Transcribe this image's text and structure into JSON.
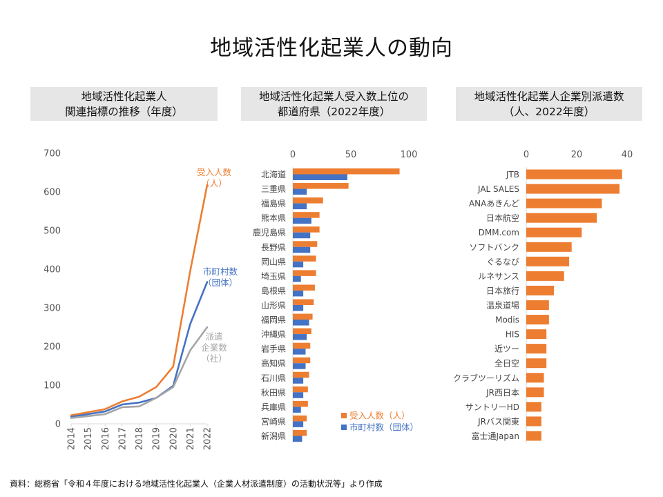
{
  "page_title": "地域活性化起業人の動向",
  "source_note": "資料：総務省「令和４年度における地域活性化起業人（企業人材派遣制度）の活動状況等」より作成",
  "colors": {
    "orange": "#ED7D31",
    "blue": "#4472C4",
    "gray": "#A5A5A5",
    "axis": "#D9D9D9",
    "panel_bg": "#E6E6E6"
  },
  "chart_data": [
    {
      "type": "line",
      "title_lines": [
        "地域活性化起業人",
        "関連指標の推移（年度）"
      ],
      "x": [
        "2014",
        "2015",
        "2016",
        "2017",
        "2018",
        "2019",
        "2020",
        "2021",
        "2022"
      ],
      "ylim": [
        0,
        700
      ],
      "yticks": [
        "0",
        "100",
        "200",
        "300",
        "400",
        "500",
        "600",
        "700"
      ],
      "series": [
        {
          "name_lines": [
            "受入人数",
            "（人）"
          ],
          "color": "#ED7D31",
          "values": [
            22,
            30,
            38,
            58,
            70,
            95,
            148,
            395,
            618
          ]
        },
        {
          "name_lines": [
            "市町村数",
            "（団体）"
          ],
          "color": "#4472C4",
          "values": [
            18,
            25,
            32,
            50,
            55,
            67,
            98,
            258,
            367
          ]
        },
        {
          "name_lines": [
            "派遣",
            "企業数",
            "（社）"
          ],
          "color": "#A5A5A5",
          "values": [
            15,
            20,
            25,
            43,
            45,
            67,
            95,
            190,
            250
          ]
        }
      ]
    },
    {
      "type": "bar",
      "orientation": "horizontal",
      "title_lines": [
        "地域活性化起業人受入数上位の",
        "都道府県（2022年度）"
      ],
      "xlim": [
        0,
        100
      ],
      "xticks": [
        "0",
        "50",
        "100"
      ],
      "categories": [
        "北海道",
        "三重県",
        "福島県",
        "熊本県",
        "鹿児島県",
        "長野県",
        "岡山県",
        "埼玉県",
        "島根県",
        "山形県",
        "福岡県",
        "沖縄県",
        "岩手県",
        "高知県",
        "石川県",
        "秋田県",
        "兵庫県",
        "宮崎県",
        "新潟県"
      ],
      "series": [
        {
          "name": "受入人数（人）",
          "color": "#ED7D31",
          "values": [
            92,
            48,
            26,
            23,
            23,
            21,
            20,
            20,
            19,
            18,
            17,
            16,
            15,
            15,
            14,
            13,
            13,
            12,
            12
          ]
        },
        {
          "name": "市町村数（団体）",
          "color": "#4472C4",
          "values": [
            47,
            12,
            12,
            16,
            15,
            15,
            9,
            7,
            9,
            9,
            14,
            12,
            11,
            11,
            9,
            9,
            7,
            9,
            8
          ]
        }
      ],
      "legend": "bottom-right"
    },
    {
      "type": "bar",
      "orientation": "horizontal",
      "title_lines": [
        "地域活性化起業人企業別派遣数",
        "（人、2022年度）"
      ],
      "xlim": [
        0,
        40
      ],
      "xticks": [
        "0",
        "20",
        "40"
      ],
      "categories": [
        "JTB",
        "JAL SALES",
        "ANAあきんど",
        "日本航空",
        "DMM.com",
        "ソフトバンク",
        "ぐるなび",
        "ルネサンス",
        "日本旅行",
        "温泉道場",
        "Modis",
        "HIS",
        "近ツー",
        "全日空",
        "クラブツーリズム",
        "JR西日本",
        "サントリーHD",
        "JRバス関東",
        "富士通Japan"
      ],
      "series": [
        {
          "name": "派遣数",
          "color": "#ED7D31",
          "values": [
            38,
            37,
            30,
            28,
            22,
            18,
            17,
            15,
            11,
            9,
            9,
            8,
            8,
            8,
            7,
            7,
            6,
            6,
            6
          ]
        }
      ]
    }
  ]
}
